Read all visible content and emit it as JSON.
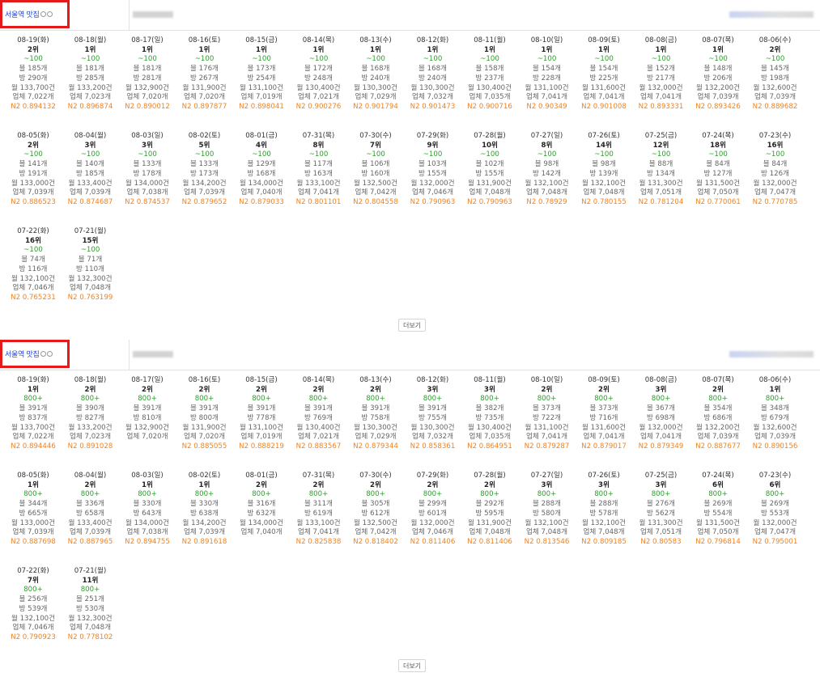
{
  "panels": [
    {
      "keyword": "서울역 맛집",
      "more_label": "더보기",
      "cells": [
        {
          "date": "08-19(화)",
          "rank": "2위",
          "volume": "~100",
          "blog": "블 185개",
          "cafe": "방 290개",
          "monthly": "월 133,700건",
          "business": "업체 7,022개",
          "n2": "N2 0.894132"
        },
        {
          "date": "08-18(월)",
          "rank": "1위",
          "volume": "~100",
          "blog": "블 181개",
          "cafe": "방 285개",
          "monthly": "월 133,200건",
          "business": "업체 7,023개",
          "n2": "N2 0.896874"
        },
        {
          "date": "08-17(일)",
          "rank": "1위",
          "volume": "~100",
          "blog": "블 181개",
          "cafe": "방 281개",
          "monthly": "월 132,900건",
          "business": "업체 7,020개",
          "n2": "N2 0.890012"
        },
        {
          "date": "08-16(토)",
          "rank": "1위",
          "volume": "~100",
          "blog": "블 176개",
          "cafe": "방 267개",
          "monthly": "월 131,900건",
          "business": "업체 7,020개",
          "n2": "N2 0.897877"
        },
        {
          "date": "08-15(금)",
          "rank": "1위",
          "volume": "~100",
          "blog": "블 173개",
          "cafe": "방 254개",
          "monthly": "월 131,100건",
          "business": "업체 7,019개",
          "n2": "N2 0.898041"
        },
        {
          "date": "08-14(목)",
          "rank": "1위",
          "volume": "~100",
          "blog": "블 172개",
          "cafe": "방 248개",
          "monthly": "월 130,400건",
          "business": "업체 7,021개",
          "n2": "N2 0.900276"
        },
        {
          "date": "08-13(수)",
          "rank": "1위",
          "volume": "~100",
          "blog": "블 168개",
          "cafe": "방 240개",
          "monthly": "월 130,300건",
          "business": "업체 7,029개",
          "n2": "N2 0.901794"
        },
        {
          "date": "08-12(화)",
          "rank": "1위",
          "volume": "~100",
          "blog": "블 168개",
          "cafe": "방 240개",
          "monthly": "월 130,300건",
          "business": "업체 7,032개",
          "n2": "N2 0.901473"
        },
        {
          "date": "08-11(월)",
          "rank": "1위",
          "volume": "~100",
          "blog": "블 158개",
          "cafe": "방 237개",
          "monthly": "월 130,400건",
          "business": "업체 7,035개",
          "n2": "N2 0.900716"
        },
        {
          "date": "08-10(일)",
          "rank": "1위",
          "volume": "~100",
          "blog": "블 154개",
          "cafe": "방 228개",
          "monthly": "월 131,100건",
          "business": "업체 7,041개",
          "n2": "N2 0.90349"
        },
        {
          "date": "08-09(토)",
          "rank": "1위",
          "volume": "~100",
          "blog": "블 154개",
          "cafe": "방 225개",
          "monthly": "월 131,600건",
          "business": "업체 7,041개",
          "n2": "N2 0.901008"
        },
        {
          "date": "08-08(금)",
          "rank": "1위",
          "volume": "~100",
          "blog": "블 152개",
          "cafe": "방 217개",
          "monthly": "월 132,000건",
          "business": "업체 7,041개",
          "n2": "N2 0.893331"
        },
        {
          "date": "08-07(목)",
          "rank": "1위",
          "volume": "~100",
          "blog": "블 148개",
          "cafe": "방 206개",
          "monthly": "월 132,200건",
          "business": "업체 7,039개",
          "n2": "N2 0.893426"
        },
        {
          "date": "08-06(수)",
          "rank": "2위",
          "volume": "~100",
          "blog": "블 145개",
          "cafe": "방 198개",
          "monthly": "월 132,600건",
          "business": "업체 7,039개",
          "n2": "N2 0.889682"
        },
        {
          "date": "08-05(화)",
          "rank": "2위",
          "volume": "~100",
          "blog": "블 141개",
          "cafe": "방 191개",
          "monthly": "월 133,000건",
          "business": "업체 7,039개",
          "n2": "N2 0.886523"
        },
        {
          "date": "08-04(월)",
          "rank": "3위",
          "volume": "~100",
          "blog": "블 140개",
          "cafe": "방 185개",
          "monthly": "월 133,400건",
          "business": "업체 7,039개",
          "n2": "N2 0.874687"
        },
        {
          "date": "08-03(일)",
          "rank": "3위",
          "volume": "~100",
          "blog": "블 133개",
          "cafe": "방 178개",
          "monthly": "월 134,000건",
          "business": "업체 7,038개",
          "n2": "N2 0.874537"
        },
        {
          "date": "08-02(토)",
          "rank": "5위",
          "volume": "~100",
          "blog": "블 133개",
          "cafe": "방 173개",
          "monthly": "월 134,200건",
          "business": "업체 7,039개",
          "n2": "N2 0.879652"
        },
        {
          "date": "08-01(금)",
          "rank": "4위",
          "volume": "~100",
          "blog": "블 129개",
          "cafe": "방 168개",
          "monthly": "월 134,000건",
          "business": "업체 7,040개",
          "n2": "N2 0.879033"
        },
        {
          "date": "07-31(목)",
          "rank": "8위",
          "volume": "~100",
          "blog": "블 117개",
          "cafe": "방 163개",
          "monthly": "월 133,100건",
          "business": "업체 7,041개",
          "n2": "N2 0.801101"
        },
        {
          "date": "07-30(수)",
          "rank": "7위",
          "volume": "~100",
          "blog": "블 106개",
          "cafe": "방 160개",
          "monthly": "월 132,500건",
          "business": "업체 7,042개",
          "n2": "N2 0.804558"
        },
        {
          "date": "07-29(화)",
          "rank": "9위",
          "volume": "~100",
          "blog": "블 103개",
          "cafe": "방 155개",
          "monthly": "월 132,000건",
          "business": "업체 7,046개",
          "n2": "N2 0.790963"
        },
        {
          "date": "07-28(월)",
          "rank": "10위",
          "volume": "~100",
          "blog": "블 102개",
          "cafe": "방 155개",
          "monthly": "월 131,900건",
          "business": "업체 7,048개",
          "n2": "N2 0.790963"
        },
        {
          "date": "07-27(일)",
          "rank": "8위",
          "volume": "~100",
          "blog": "블 98개",
          "cafe": "방 142개",
          "monthly": "월 132,100건",
          "business": "업체 7,048개",
          "n2": "N2 0.78929"
        },
        {
          "date": "07-26(토)",
          "rank": "14위",
          "volume": "~100",
          "blog": "블 98개",
          "cafe": "방 139개",
          "monthly": "월 132,100건",
          "business": "업체 7,048개",
          "n2": "N2 0.780155"
        },
        {
          "date": "07-25(금)",
          "rank": "12위",
          "volume": "~100",
          "blog": "블 88개",
          "cafe": "방 134개",
          "monthly": "월 131,300건",
          "business": "업체 7,051개",
          "n2": "N2 0.781204"
        },
        {
          "date": "07-24(목)",
          "rank": "18위",
          "volume": "~100",
          "blog": "블 84개",
          "cafe": "방 127개",
          "monthly": "월 131,500건",
          "business": "업체 7,050개",
          "n2": "N2 0.770061"
        },
        {
          "date": "07-23(수)",
          "rank": "16위",
          "volume": "~100",
          "blog": "블 84개",
          "cafe": "방 126개",
          "monthly": "월 132,000건",
          "business": "업체 7,047개",
          "n2": "N2 0.770785"
        },
        {
          "date": "07-22(화)",
          "rank": "16위",
          "volume": "~100",
          "blog": "블 74개",
          "cafe": "방 116개",
          "monthly": "월 132,100건",
          "business": "업체 7,046개",
          "n2": "N2 0.765231"
        },
        {
          "date": "07-21(월)",
          "rank": "15위",
          "volume": "~100",
          "blog": "블 71개",
          "cafe": "방 110개",
          "monthly": "월 132,300건",
          "business": "업체 7,048개",
          "n2": "N2 0.763199"
        }
      ]
    },
    {
      "keyword": "서울역 맛집",
      "more_label": "더보기",
      "cells": [
        {
          "date": "08-19(화)",
          "rank": "1위",
          "volume": "800+",
          "blog": "블 391개",
          "cafe": "방 837개",
          "monthly": "월 133,700건",
          "business": "업체 7,022개",
          "n2": "N2 0.894446"
        },
        {
          "date": "08-18(월)",
          "rank": "2위",
          "volume": "800+",
          "blog": "블 390개",
          "cafe": "방 827개",
          "monthly": "월 133,200건",
          "business": "업체 7,023개",
          "n2": "N2 0.891028"
        },
        {
          "date": "08-17(일)",
          "rank": "2위",
          "volume": "800+",
          "blog": "블 391개",
          "cafe": "방 810개",
          "monthly": "월 132,900건",
          "business": "업체 7,020개",
          "n2": ""
        },
        {
          "date": "08-16(토)",
          "rank": "2위",
          "volume": "800+",
          "blog": "블 391개",
          "cafe": "방 800개",
          "monthly": "월 131,900건",
          "business": "업체 7,020개",
          "n2": "N2 0.885055"
        },
        {
          "date": "08-15(금)",
          "rank": "2위",
          "volume": "800+",
          "blog": "블 391개",
          "cafe": "방 778개",
          "monthly": "월 131,100건",
          "business": "업체 7,019개",
          "n2": "N2 0.888219"
        },
        {
          "date": "08-14(목)",
          "rank": "2위",
          "volume": "800+",
          "blog": "블 391개",
          "cafe": "방 769개",
          "monthly": "월 130,400건",
          "business": "업체 7,021개",
          "n2": "N2 0.883567"
        },
        {
          "date": "08-13(수)",
          "rank": "2위",
          "volume": "800+",
          "blog": "블 391개",
          "cafe": "방 758개",
          "monthly": "월 130,300건",
          "business": "업체 7,029개",
          "n2": "N2 0.879344"
        },
        {
          "date": "08-12(화)",
          "rank": "3위",
          "volume": "800+",
          "blog": "블 391개",
          "cafe": "방 755개",
          "monthly": "월 130,300건",
          "business": "업체 7,032개",
          "n2": "N2 0.858361"
        },
        {
          "date": "08-11(월)",
          "rank": "3위",
          "volume": "800+",
          "blog": "블 382개",
          "cafe": "방 735개",
          "monthly": "월 130,400건",
          "business": "업체 7,035개",
          "n2": "N2 0.864951"
        },
        {
          "date": "08-10(일)",
          "rank": "2위",
          "volume": "800+",
          "blog": "블 373개",
          "cafe": "방 722개",
          "monthly": "월 131,100건",
          "business": "업체 7,041개",
          "n2": "N2 0.879287"
        },
        {
          "date": "08-09(토)",
          "rank": "2위",
          "volume": "800+",
          "blog": "블 373개",
          "cafe": "방 716개",
          "monthly": "월 131,600건",
          "business": "업체 7,041개",
          "n2": "N2 0.879017"
        },
        {
          "date": "08-08(금)",
          "rank": "3위",
          "volume": "800+",
          "blog": "블 367개",
          "cafe": "방 698개",
          "monthly": "월 132,000건",
          "business": "업체 7,041개",
          "n2": "N2 0.879349"
        },
        {
          "date": "08-07(목)",
          "rank": "2위",
          "volume": "800+",
          "blog": "블 354개",
          "cafe": "방 686개",
          "monthly": "월 132,200건",
          "business": "업체 7,039개",
          "n2": "N2 0.887677"
        },
        {
          "date": "08-06(수)",
          "rank": "1위",
          "volume": "800+",
          "blog": "블 348개",
          "cafe": "방 679개",
          "monthly": "월 132,600건",
          "business": "업체 7,039개",
          "n2": "N2 0.890156"
        },
        {
          "date": "08-05(화)",
          "rank": "1위",
          "volume": "800+",
          "blog": "블 344개",
          "cafe": "방 665개",
          "monthly": "월 133,000건",
          "business": "업체 7,039개",
          "n2": "N2 0.887698"
        },
        {
          "date": "08-04(월)",
          "rank": "2위",
          "volume": "800+",
          "blog": "블 336개",
          "cafe": "방 658개",
          "monthly": "월 133,400건",
          "business": "업체 7,039개",
          "n2": "N2 0.887965"
        },
        {
          "date": "08-03(일)",
          "rank": "1위",
          "volume": "800+",
          "blog": "블 330개",
          "cafe": "방 643개",
          "monthly": "월 134,000건",
          "business": "업체 7,038개",
          "n2": "N2 0.894755"
        },
        {
          "date": "08-02(토)",
          "rank": "1위",
          "volume": "800+",
          "blog": "블 330개",
          "cafe": "방 638개",
          "monthly": "월 134,200건",
          "business": "업체 7,039개",
          "n2": "N2 0.891618"
        },
        {
          "date": "08-01(금)",
          "rank": "2위",
          "volume": "800+",
          "blog": "블 316개",
          "cafe": "방 632개",
          "monthly": "월 134,000건",
          "business": "업체 7,040개",
          "n2": ""
        },
        {
          "date": "07-31(목)",
          "rank": "2위",
          "volume": "800+",
          "blog": "블 311개",
          "cafe": "방 619개",
          "monthly": "월 133,100건",
          "business": "업체 7,041개",
          "n2": "N2 0.825838"
        },
        {
          "date": "07-30(수)",
          "rank": "2위",
          "volume": "800+",
          "blog": "블 305개",
          "cafe": "방 612개",
          "monthly": "월 132,500건",
          "business": "업체 7,042개",
          "n2": "N2 0.818402"
        },
        {
          "date": "07-29(화)",
          "rank": "2위",
          "volume": "800+",
          "blog": "블 299개",
          "cafe": "방 601개",
          "monthly": "월 132,000건",
          "business": "업체 7,046개",
          "n2": "N2 0.811406"
        },
        {
          "date": "07-28(월)",
          "rank": "2위",
          "volume": "800+",
          "blog": "블 292개",
          "cafe": "방 595개",
          "monthly": "월 131,900건",
          "business": "업체 7,048개",
          "n2": "N2 0.811406"
        },
        {
          "date": "07-27(일)",
          "rank": "3위",
          "volume": "800+",
          "blog": "블 288개",
          "cafe": "방 580개",
          "monthly": "월 132,100건",
          "business": "업체 7,048개",
          "n2": "N2 0.813546"
        },
        {
          "date": "07-26(토)",
          "rank": "3위",
          "volume": "800+",
          "blog": "블 288개",
          "cafe": "방 578개",
          "monthly": "월 132,100건",
          "business": "업체 7,048개",
          "n2": "N2 0.809185"
        },
        {
          "date": "07-25(금)",
          "rank": "3위",
          "volume": "800+",
          "blog": "블 276개",
          "cafe": "방 562개",
          "monthly": "월 131,300건",
          "business": "업체 7,051개",
          "n2": "N2 0.80583"
        },
        {
          "date": "07-24(목)",
          "rank": "6위",
          "volume": "800+",
          "blog": "블 269개",
          "cafe": "방 554개",
          "monthly": "월 131,500건",
          "business": "업체 7,050개",
          "n2": "N2 0.796814"
        },
        {
          "date": "07-23(수)",
          "rank": "6위",
          "volume": "800+",
          "blog": "블 269개",
          "cafe": "방 553개",
          "monthly": "월 132,000건",
          "business": "업체 7,047개",
          "n2": "N2 0.795001"
        },
        {
          "date": "07-22(화)",
          "rank": "7위",
          "volume": "800+",
          "blog": "블 256개",
          "cafe": "방 539개",
          "monthly": "월 132,100건",
          "business": "업체 7,046개",
          "n2": "N2 0.790923"
        },
        {
          "date": "07-21(월)",
          "rank": "11위",
          "volume": "800+",
          "blog": "블 251개",
          "cafe": "방 530개",
          "monthly": "월 132,300건",
          "business": "업체 7,048개",
          "n2": "N2 0.778102"
        }
      ]
    }
  ]
}
